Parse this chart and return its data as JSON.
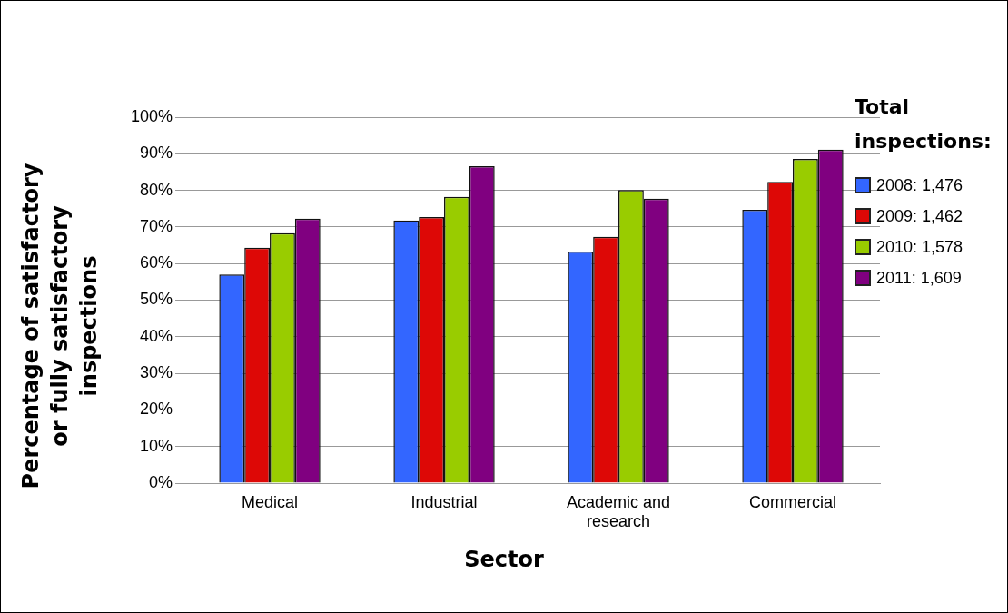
{
  "chart_data": {
    "type": "bar",
    "xlabel": "Sector",
    "ylabel": "Percentage of satisfactory or fully satisfactory inspections",
    "legend_title": "Total inspections:",
    "categories": [
      "Medical",
      "Industrial",
      "Academic and research",
      "Commercial"
    ],
    "series": [
      {
        "name": "2008: 1,476",
        "color": "#3366ff",
        "values": [
          57,
          71.8,
          63.3,
          74.7
        ]
      },
      {
        "name": "2009: 1,462",
        "color": "#dd0806",
        "values": [
          64.3,
          72.7,
          67.3,
          82.3
        ]
      },
      {
        "name": "2010: 1,578",
        "color": "#99cc00",
        "values": [
          68.3,
          78.2,
          80.1,
          88.6
        ]
      },
      {
        "name": "2011: 1,609",
        "color": "#800080",
        "values": [
          72.3,
          86.6,
          77.7,
          91.1
        ]
      }
    ],
    "ylim": [
      0,
      100
    ],
    "yticks": [
      {
        "value": 0,
        "label": "0%"
      },
      {
        "value": 10,
        "label": "10%"
      },
      {
        "value": 20,
        "label": "20%"
      },
      {
        "value": 30,
        "label": "30%"
      },
      {
        "value": 40,
        "label": "40%"
      },
      {
        "value": 50,
        "label": "50%"
      },
      {
        "value": 60,
        "label": "60%"
      },
      {
        "value": 70,
        "label": "70%"
      },
      {
        "value": 80,
        "label": "80%"
      },
      {
        "value": 90,
        "label": "90%"
      },
      {
        "value": 100,
        "label": "100%"
      }
    ],
    "grid": "y",
    "legend": "right"
  }
}
